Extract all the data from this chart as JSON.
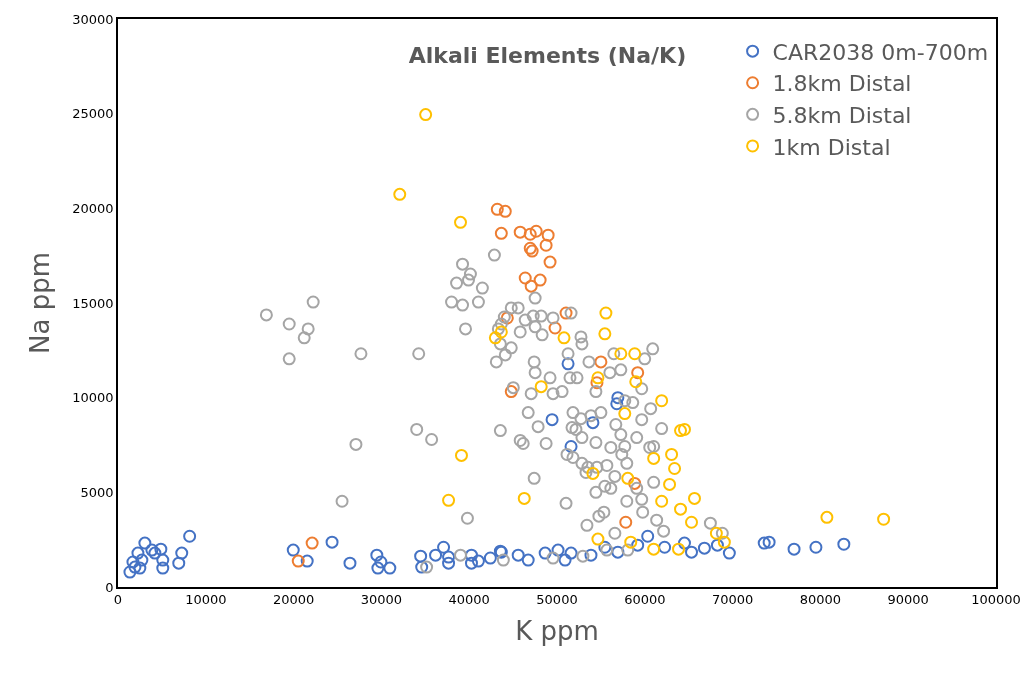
{
  "chart_data": {
    "type": "scatter",
    "title": "Alkali Elements (Na/K)",
    "xlabel": "K ppm",
    "ylabel": "Na ppm",
    "xlim": [
      0,
      100000
    ],
    "xticks": [
      0,
      10000,
      20000,
      30000,
      40000,
      50000,
      60000,
      70000,
      80000,
      90000,
      100000
    ],
    "ylim": [
      0,
      30000
    ],
    "yticks": [
      0,
      5000,
      10000,
      15000,
      20000,
      25000,
      30000
    ],
    "grid": false,
    "legend": "top right",
    "marker": "circle",
    "series": [
      {
        "name": "CAR2038 0m-700m",
        "color": "#4472c4",
        "x": [
          1360,
          1930,
          2270,
          3060,
          2720,
          3860,
          4200,
          4880,
          5100,
          5100,
          7260,
          6920,
          8160,
          1700,
          2490,
          19960,
          21550,
          24380,
          26420,
          29480,
          29940,
          29600,
          30960,
          34470,
          34590,
          36170,
          37080,
          37650,
          37650,
          40260,
          41050,
          42410,
          43660,
          40260,
          43550,
          46720,
          45580,
          48650,
          50120,
          51600,
          50920,
          53870,
          55450,
          56930,
          59190,
          60330,
          62260,
          64520,
          65320,
          66790,
          68270,
          69630,
          51260,
          56930,
          56810,
          49440,
          54090,
          51600,
          73600,
          74160,
          77000,
          79490,
          82670
        ],
        "values": [
          790,
          1050,
          1790,
          2320,
          1420,
          1950,
          1790,
          2000,
          1420,
          1000,
          1790,
          1260,
          2680,
          1320,
          1000,
          1950,
          1370,
          2370,
          1260,
          1680,
          1320,
          1000,
          1000,
          1630,
          1050,
          1680,
          2100,
          1580,
          1260,
          1680,
          1370,
          1530,
          1840,
          1260,
          1890,
          1420,
          1680,
          1790,
          1950,
          1790,
          1420,
          1680,
          2100,
          1840,
          2210,
          2680,
          2100,
          2320,
          1840,
          2050,
          2210,
          1790,
          11790,
          10000,
          9680,
          8840,
          8680,
          7420,
          2320,
          2370,
          2000,
          2100,
          2260
        ]
      },
      {
        "name": "1.8km Distal",
        "color": "#ed7d31",
        "x": [
          43200,
          44110,
          43660,
          45810,
          46950,
          47630,
          48990,
          48760,
          46950,
          47170,
          49210,
          46380,
          47060,
          48080,
          51030,
          49780,
          44340,
          55000,
          54550,
          44790,
          59190,
          58850,
          57830,
          22110,
          20530
        ],
        "values": [
          19950,
          19840,
          18680,
          18740,
          18630,
          18790,
          18580,
          18050,
          17890,
          17740,
          17160,
          16320,
          15890,
          16210,
          14470,
          13680,
          14210,
          11890,
          10790,
          10320,
          11320,
          5470,
          3420,
          2320,
          1370
        ]
      },
      {
        "name": "5.8km Distal",
        "color": "#a5a5a5",
        "x": [
          16900,
          19500,
          19500,
          21660,
          21210,
          22230,
          27670,
          27100,
          25520,
          34250,
          34020,
          35720,
          39800,
          39240,
          40140,
          39920,
          38560,
          41500,
          37990,
          39240,
          41050,
          39580,
          42870,
          43550,
          39010,
          35150,
          43890,
          47510,
          44790,
          45580,
          44000,
          46380,
          47290,
          48200,
          49550,
          51600,
          43660,
          43320,
          45810,
          47510,
          48310,
          43550,
          44790,
          44110,
          43090,
          52730,
          52840,
          51260,
          47400,
          47510,
          53640,
          56470,
          60900,
          59990,
          56020,
          57270,
          49210,
          51480,
          52280,
          54430,
          59650,
          45020,
          47060,
          49550,
          50580,
          57720,
          58630,
          60670,
          46720,
          51820,
          52730,
          55000,
          59650,
          53870,
          56700,
          61920,
          47850,
          51710,
          52160,
          57270,
          59080,
          45810,
          46150,
          48760,
          52840,
          54430,
          56130,
          57720,
          60560,
          61010,
          51140,
          51820,
          52840,
          53520,
          54550,
          55680,
          57380,
          57950,
          53300,
          56590,
          61010,
          47400,
          55450,
          56130,
          54430,
          59080,
          59650,
          57950,
          51030,
          59760,
          55340,
          54770,
          53410,
          61350,
          62140,
          67470,
          68830,
          56590,
          49550,
          52950,
          55680,
          58060
        ],
        "values": [
          14370,
          13890,
          12050,
          13630,
          13160,
          15050,
          12320,
          7530,
          4530,
          12320,
          8320,
          7790,
          3630,
          17050,
          16530,
          16210,
          16050,
          15790,
          15050,
          14890,
          15050,
          13630,
          17530,
          8260,
          1680,
          1050,
          1420,
          15260,
          14740,
          14740,
          14260,
          14100,
          14310,
          14310,
          14210,
          14470,
          13890,
          13630,
          13470,
          13740,
          13320,
          12840,
          12630,
          12260,
          11890,
          13210,
          12840,
          12320,
          11890,
          11320,
          11890,
          12320,
          12580,
          12050,
          11320,
          11470,
          11050,
          11050,
          11050,
          10320,
          10470,
          10530,
          10210,
          10210,
          10320,
          9840,
          9740,
          9420,
          9210,
          9210,
          8890,
          9210,
          8840,
          9050,
          8580,
          8370,
          8470,
          8420,
          8320,
          8050,
          7890,
          7740,
          7580,
          7580,
          7890,
          7630,
          7370,
          7420,
          7370,
          7420,
          7000,
          6840,
          6530,
          6320,
          6320,
          6420,
          7000,
          6530,
          6050,
          5840,
          5530,
          5740,
          5320,
          5210,
          5000,
          5210,
          4630,
          4530,
          4420,
          3950,
          3950,
          3740,
          3260,
          3530,
          2950,
          3370,
          2840,
          2840,
          1530,
          1630,
          1950,
          1950
        ]
      },
      {
        "name": "1km Distal",
        "color": "#ffc000",
        "x": [
          35040,
          32090,
          39010,
          39120,
          37650,
          55570,
          55450,
          50800,
          42980,
          43660,
          57270,
          58850,
          54660,
          58970,
          48200,
          61920,
          57720,
          64070,
          64520,
          61010,
          63050,
          63390,
          54090,
          58060,
          62820,
          46270,
          61920,
          65660,
          64070,
          65320,
          68150,
          69060,
          54660,
          58400,
          61010,
          63840,
          80740,
          87200
        ],
        "values": [
          24950,
          20740,
          19260,
          6950,
          4580,
          14470,
          13370,
          13160,
          13160,
          13470,
          12320,
          12320,
          11050,
          10840,
          10580,
          9840,
          9160,
          8260,
          8320,
          6790,
          7000,
          6260,
          6000,
          5740,
          5420,
          4680,
          4530,
          4680,
          4110,
          3420,
          2840,
          2370,
          2530,
          2370,
          2000,
          2000,
          3680,
          3580
        ]
      }
    ]
  }
}
